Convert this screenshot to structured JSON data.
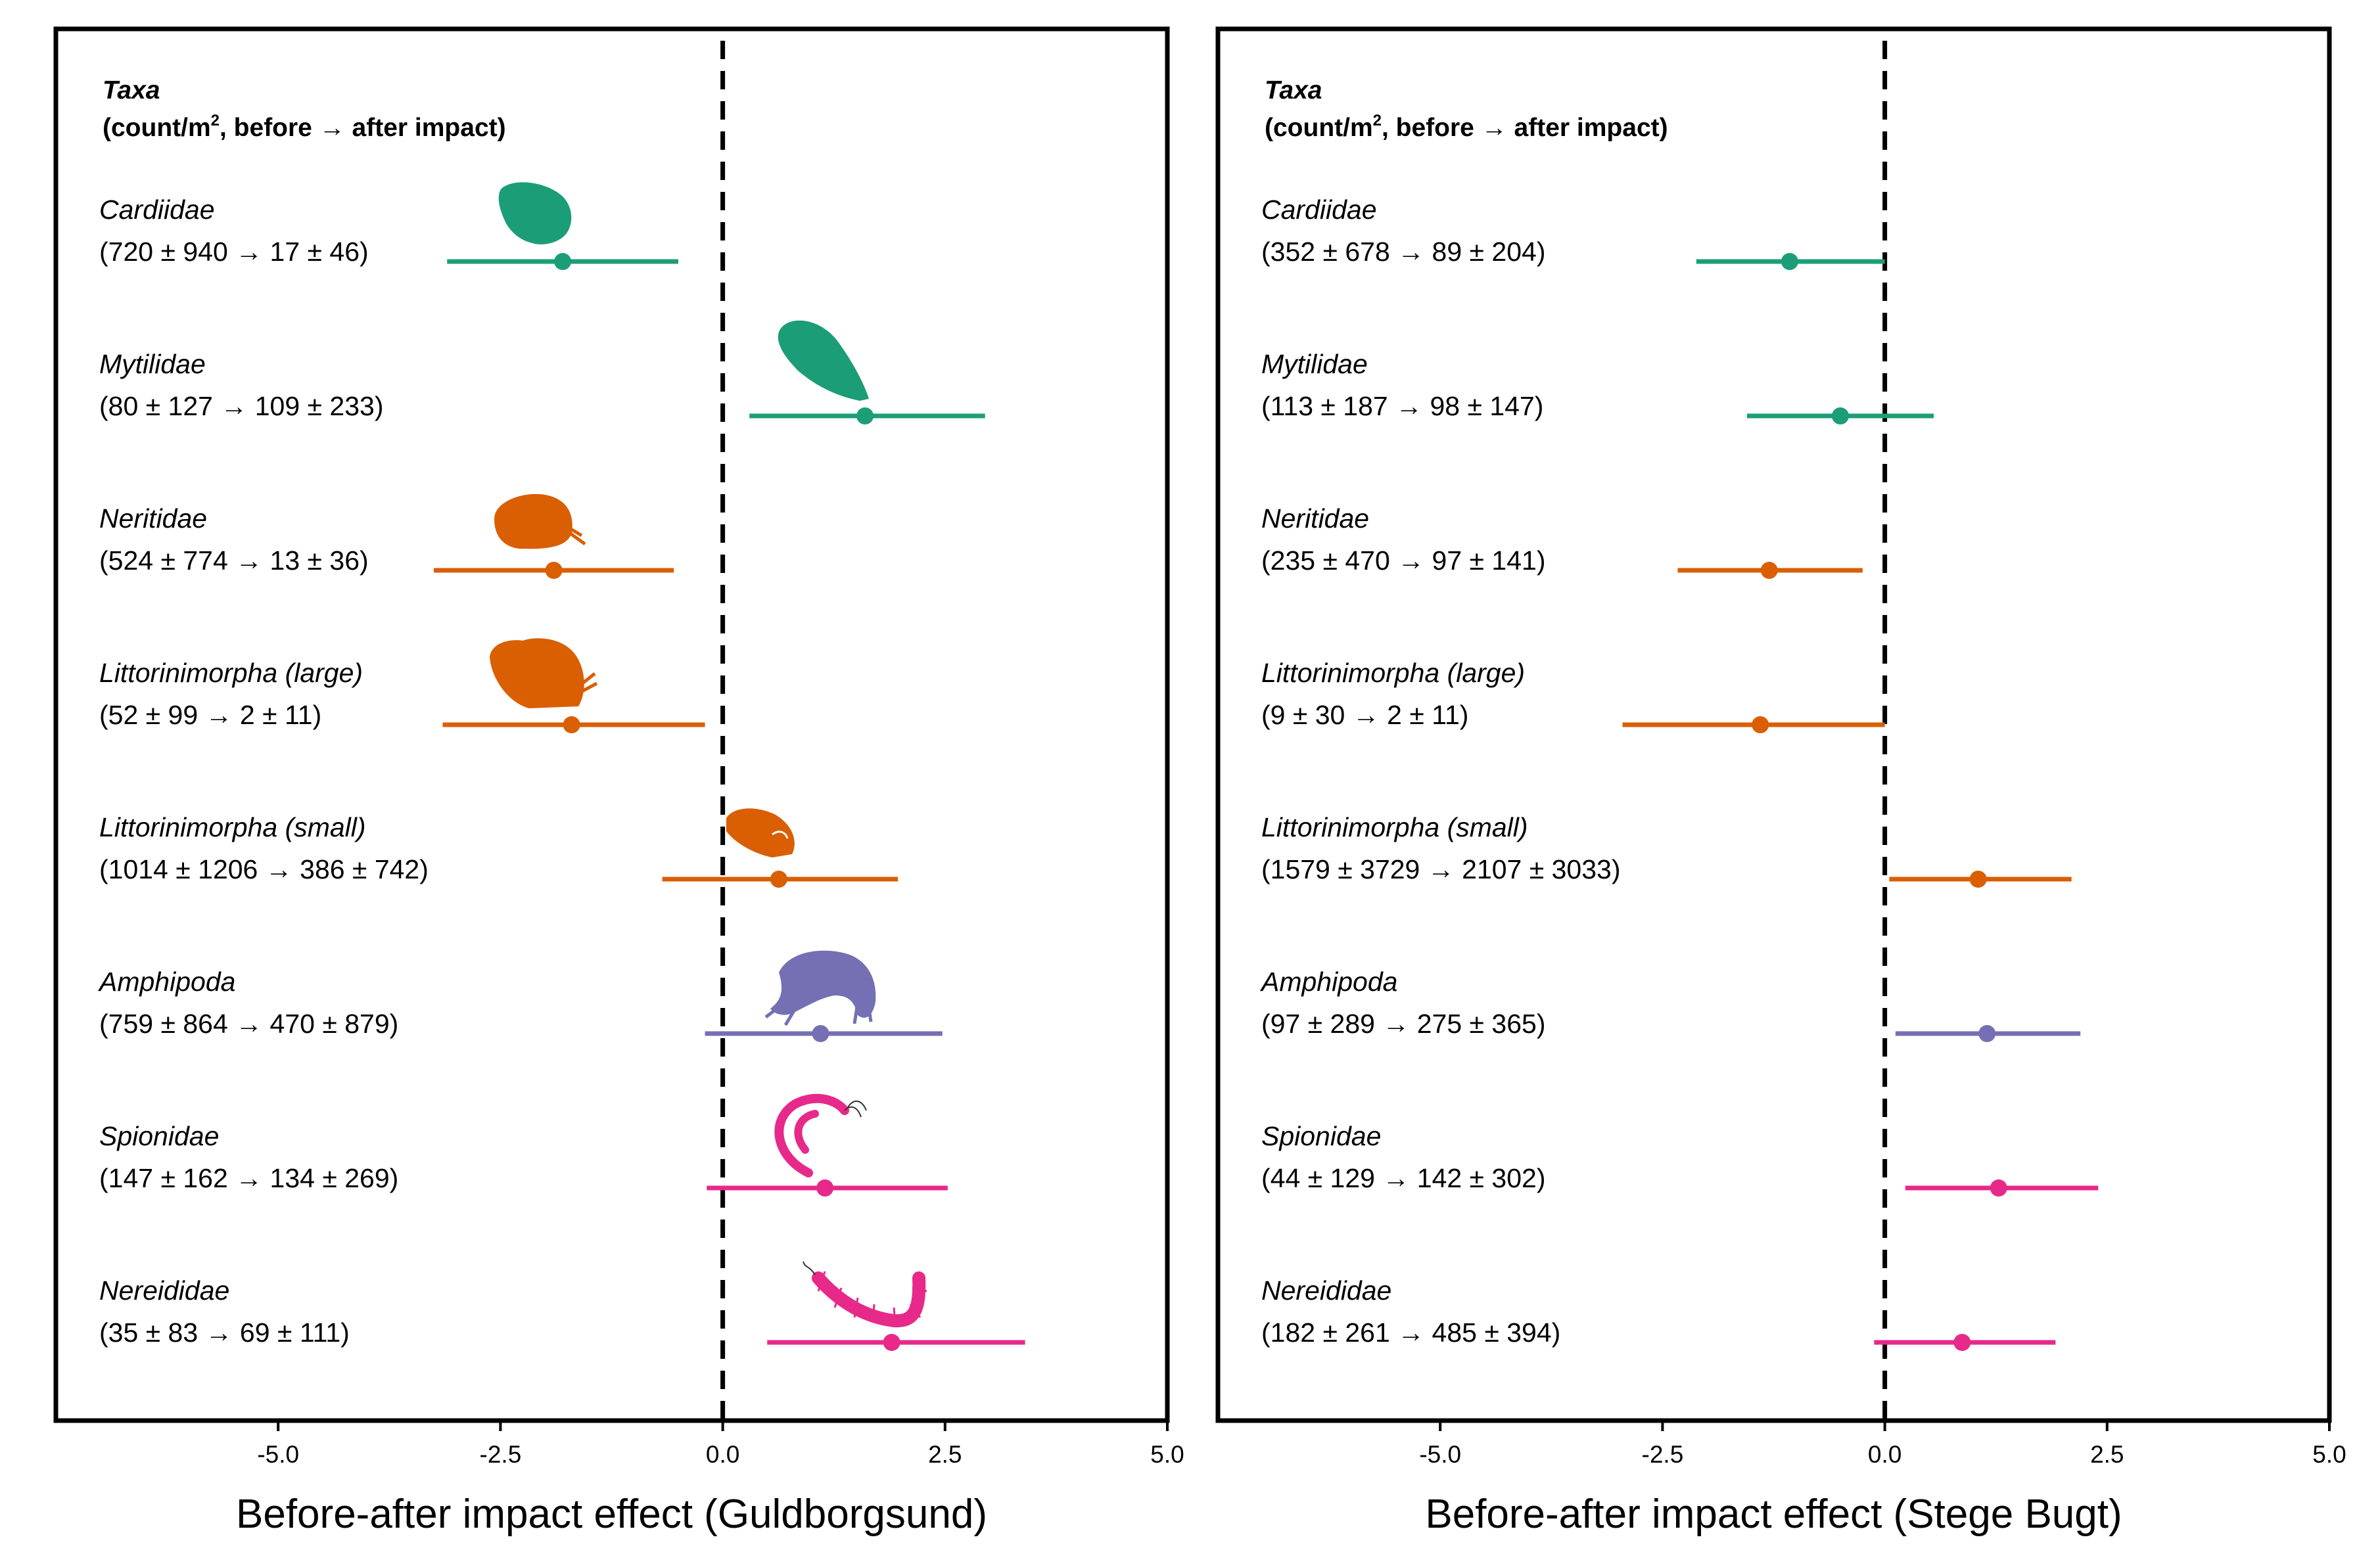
{
  "colors": {
    "bivalve": "#1b9e77",
    "gastropod": "#d95f02",
    "crustacean": "#7570b3",
    "polychaete": "#e7298a"
  },
  "chart_data": [
    {
      "type": "forest",
      "panel": "left",
      "xlabel": "Before-after impact effect (Guldborgsund)",
      "xlim": [
        -7.5,
        5.0
      ],
      "xticks": [
        "-5.0",
        "-2.5",
        "0.0",
        "2.5",
        "5.0"
      ],
      "xtick_values": [
        -5.0,
        -2.5,
        0.0,
        2.5,
        5.0
      ],
      "reference_line": 0.0,
      "header_line1": "Taxa",
      "header_line2_pre": "(count/m",
      "header_line2_sup": "2",
      "header_line2_post": ", before → after impact)",
      "rows": [
        {
          "taxon": "Cardiidae",
          "counts": "(720 ± 940 → 17 ± 46)",
          "estimate": -1.8,
          "lower": -3.1,
          "upper": -0.5,
          "group": "bivalve",
          "icon": "cockle-icon"
        },
        {
          "taxon": "Mytilidae",
          "counts": "(80 ± 127 → 109 ± 233)",
          "estimate": 1.6,
          "lower": 0.3,
          "upper": 2.95,
          "group": "bivalve",
          "icon": "mussel-icon"
        },
        {
          "taxon": "Neritidae",
          "counts": "(524 ± 774 → 13 ± 36)",
          "estimate": -1.9,
          "lower": -3.25,
          "upper": -0.55,
          "group": "gastropod",
          "icon": "nerite-snail-icon"
        },
        {
          "taxon": "Littorinimorpha (large)",
          "counts": "(52 ± 99 → 2 ± 11)",
          "estimate": -1.7,
          "lower": -3.15,
          "upper": -0.2,
          "group": "gastropod",
          "icon": "periwinkle-large-icon"
        },
        {
          "taxon": "Littorinimorpha (small)",
          "counts": "(1014 ± 1206 → 386 ± 742)",
          "estimate": 0.63,
          "lower": -0.68,
          "upper": 1.97,
          "group": "gastropod",
          "icon": "periwinkle-small-icon"
        },
        {
          "taxon": "Amphipoda",
          "counts": "(759 ± 864 → 470 ± 879)",
          "estimate": 1.1,
          "lower": -0.2,
          "upper": 2.47,
          "group": "crustacean",
          "icon": "amphipod-icon"
        },
        {
          "taxon": "Spionidae",
          "counts": "(147 ± 162 → 134 ± 269)",
          "estimate": 1.15,
          "lower": -0.18,
          "upper": 2.53,
          "group": "polychaete",
          "icon": "spionid-worm-icon"
        },
        {
          "taxon": "Nereididae",
          "counts": "(35 ± 83 → 69 ± 111)",
          "estimate": 1.9,
          "lower": 0.5,
          "upper": 3.4,
          "group": "polychaete",
          "icon": "ragworm-icon"
        }
      ]
    },
    {
      "type": "forest",
      "panel": "right",
      "xlabel": "Before-after impact effect (Stege Bugt)",
      "xlim": [
        -7.5,
        5.0
      ],
      "xticks": [
        "-5.0",
        "-2.5",
        "0.0",
        "2.5",
        "5.0"
      ],
      "xtick_values": [
        -5.0,
        -2.5,
        0.0,
        2.5,
        5.0
      ],
      "reference_line": 0.0,
      "header_line1": "Taxa",
      "header_line2_pre": "(count/m",
      "header_line2_sup": "2",
      "header_line2_post": ", before → after impact)",
      "rows": [
        {
          "taxon": "Cardiidae",
          "counts": "(352 ± 678 → 89 ± 204)",
          "estimate": -1.07,
          "lower": -2.12,
          "upper": 0.0,
          "group": "bivalve"
        },
        {
          "taxon": "Mytilidae",
          "counts": "(113 ± 187 → 98 ± 147)",
          "estimate": -0.5,
          "lower": -1.55,
          "upper": 0.55,
          "group": "bivalve"
        },
        {
          "taxon": "Neritidae",
          "counts": "(235 ± 470 → 97 ± 141)",
          "estimate": -1.3,
          "lower": -2.33,
          "upper": -0.25,
          "group": "gastropod"
        },
        {
          "taxon": "Littorinimorpha (large)",
          "counts": "(9 ± 30 → 2 ± 11)",
          "estimate": -1.4,
          "lower": -2.95,
          "upper": 0.0,
          "group": "gastropod"
        },
        {
          "taxon": "Littorinimorpha (small)",
          "counts": "(1579 ± 3729 → 2107 ± 3033)",
          "estimate": 1.05,
          "lower": 0.05,
          "upper": 2.1,
          "group": "gastropod"
        },
        {
          "taxon": "Amphipoda",
          "counts": "(97 ± 289 → 275 ± 365)",
          "estimate": 1.15,
          "lower": 0.12,
          "upper": 2.2,
          "group": "crustacean"
        },
        {
          "taxon": "Spionidae",
          "counts": "(44 ± 129 → 142 ± 302)",
          "estimate": 1.28,
          "lower": 0.23,
          "upper": 2.4,
          "group": "polychaete"
        },
        {
          "taxon": "Nereididae",
          "counts": "(182 ± 261 → 485 ± 394)",
          "estimate": 0.87,
          "lower": -0.12,
          "upper": 1.92,
          "group": "polychaete"
        }
      ]
    }
  ]
}
